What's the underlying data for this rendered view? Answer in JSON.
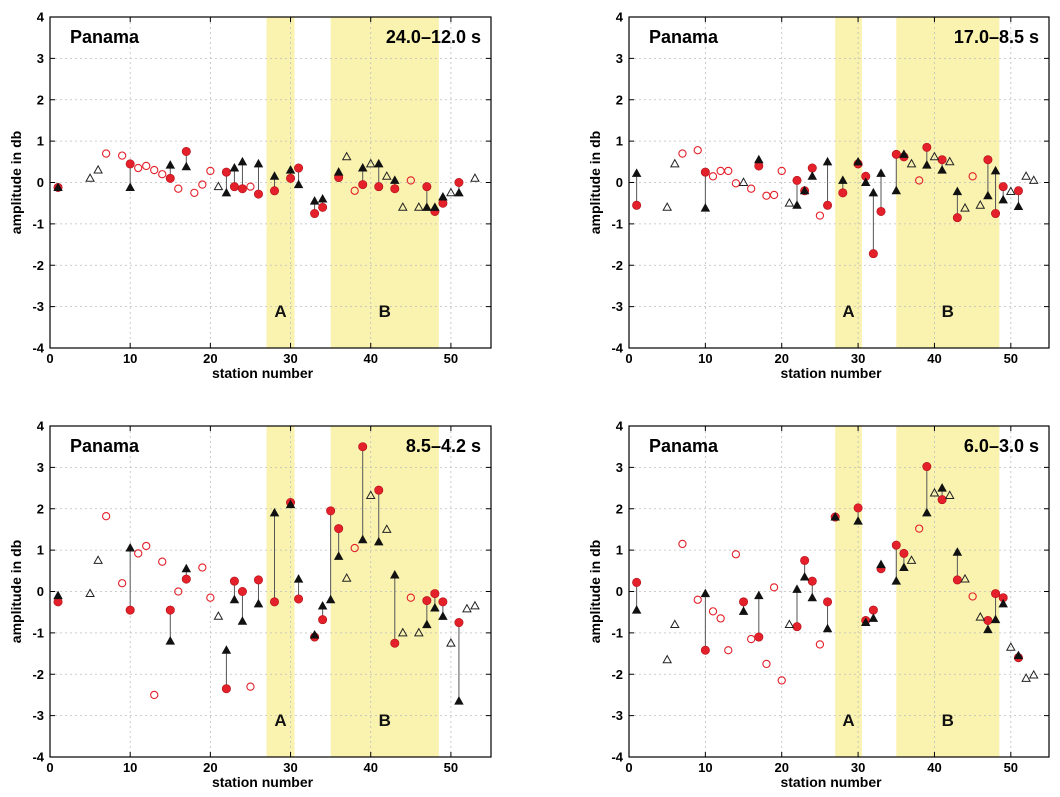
{
  "chart_data": [
    {
      "type": "scatter",
      "title": "Panama",
      "period": "24.0–12.0 s",
      "xlabel": "station number",
      "ylabel": "amplitude in db",
      "xlim": [
        0,
        55
      ],
      "ylim": [
        -4,
        4
      ],
      "xticks": [
        "0",
        "10",
        "20",
        "30",
        "40",
        "50"
      ],
      "yticks": [
        "-4",
        "-3",
        "-2",
        "-1",
        "0",
        "1",
        "2",
        "3",
        "4"
      ],
      "grid": true,
      "regions": [
        {
          "label": "A",
          "x": [
            27,
            30.5
          ]
        },
        {
          "label": "B",
          "x": [
            35,
            48.5
          ]
        }
      ],
      "series": [
        {
          "marker": "filled-red-circle",
          "x": [
            1,
            10,
            15,
            17,
            22,
            23,
            24,
            26,
            28,
            30,
            31,
            33,
            34,
            36,
            39,
            41,
            43,
            47,
            48,
            49,
            51
          ],
          "values": [
            -0.12,
            0.45,
            0.1,
            0.75,
            0.25,
            -0.1,
            -0.15,
            -0.28,
            -0.2,
            0.1,
            0.35,
            -0.75,
            -0.6,
            0.12,
            -0.05,
            -0.1,
            -0.15,
            -0.1,
            -0.7,
            -0.5,
            0.0
          ]
        },
        {
          "marker": "filled-black-triangle",
          "x": [
            1,
            10,
            15,
            17,
            22,
            23,
            24,
            26,
            28,
            30,
            31,
            33,
            34,
            36,
            39,
            41,
            43,
            47,
            48,
            49,
            51
          ],
          "values": [
            -0.12,
            -0.12,
            0.42,
            0.38,
            -0.25,
            0.35,
            0.5,
            0.45,
            0.15,
            0.3,
            -0.05,
            -0.45,
            -0.4,
            0.25,
            0.35,
            0.45,
            0.05,
            -0.6,
            -0.6,
            -0.35,
            -0.25
          ]
        },
        {
          "marker": "open-red-circle",
          "x": [
            7,
            9,
            11,
            12,
            13,
            14,
            16,
            18,
            19,
            20,
            25,
            38,
            45
          ],
          "values": [
            0.7,
            0.65,
            0.35,
            0.4,
            0.3,
            0.2,
            -0.15,
            -0.25,
            -0.05,
            0.28,
            -0.1,
            -0.2,
            0.05
          ]
        },
        {
          "marker": "open-black-triangle",
          "x": [
            5,
            6,
            21,
            37,
            40,
            42,
            44,
            46,
            50,
            53
          ],
          "values": [
            0.1,
            0.3,
            -0.1,
            0.62,
            0.45,
            0.15,
            -0.6,
            -0.6,
            -0.25,
            0.1
          ]
        }
      ]
    },
    {
      "type": "scatter",
      "title": "Panama",
      "period": "17.0–8.5 s",
      "xlabel": "station number",
      "ylabel": "amplitude in db",
      "xlim": [
        0,
        55
      ],
      "ylim": [
        -4,
        4
      ],
      "xticks": [
        "0",
        "10",
        "20",
        "30",
        "40",
        "50"
      ],
      "yticks": [
        "-4",
        "-3",
        "-2",
        "-1",
        "0",
        "1",
        "2",
        "3",
        "4"
      ],
      "grid": true,
      "regions": [
        {
          "label": "A",
          "x": [
            27,
            30.5
          ]
        },
        {
          "label": "B",
          "x": [
            35,
            48.5
          ]
        }
      ],
      "series": [
        {
          "marker": "filled-red-circle",
          "x": [
            1,
            10,
            17,
            22,
            23,
            24,
            26,
            28,
            30,
            31,
            32,
            33,
            35,
            36,
            39,
            41,
            43,
            47,
            48,
            49,
            51
          ],
          "values": [
            -0.55,
            0.25,
            0.4,
            0.05,
            -0.2,
            0.35,
            -0.55,
            -0.25,
            0.45,
            0.15,
            -1.72,
            -0.7,
            0.68,
            0.62,
            0.85,
            0.55,
            -0.85,
            0.55,
            -0.75,
            -0.1,
            -0.2
          ]
        },
        {
          "marker": "filled-black-triangle",
          "x": [
            1,
            10,
            17,
            22,
            23,
            24,
            26,
            28,
            30,
            31,
            32,
            33,
            35,
            36,
            39,
            41,
            43,
            47,
            48,
            49,
            51
          ],
          "values": [
            0.22,
            -0.62,
            0.55,
            -0.55,
            -0.2,
            0.15,
            0.5,
            0.05,
            0.5,
            0.0,
            -0.25,
            0.22,
            -0.2,
            0.68,
            0.42,
            0.3,
            -0.22,
            -0.32,
            0.28,
            -0.42,
            -0.58
          ]
        },
        {
          "marker": "open-red-circle",
          "x": [
            7,
            9,
            11,
            12,
            13,
            14,
            16,
            18,
            19,
            20,
            25,
            38,
            45
          ],
          "values": [
            0.7,
            0.78,
            0.15,
            0.28,
            0.28,
            -0.02,
            -0.15,
            -0.32,
            -0.3,
            0.28,
            -0.8,
            0.05,
            0.15
          ]
        },
        {
          "marker": "open-black-triangle",
          "x": [
            5,
            6,
            15,
            21,
            37,
            40,
            42,
            44,
            46,
            50,
            52,
            53
          ],
          "values": [
            -0.6,
            0.45,
            0.0,
            -0.5,
            0.45,
            0.62,
            0.5,
            -0.62,
            -0.55,
            -0.22,
            0.15,
            0.05
          ]
        }
      ]
    },
    {
      "type": "scatter",
      "title": "Panama",
      "period": "8.5–4.2 s",
      "xlabel": "station number",
      "ylabel": "amplitude in db",
      "xlim": [
        0,
        55
      ],
      "ylim": [
        -4,
        4
      ],
      "xticks": [
        "0",
        "10",
        "20",
        "30",
        "40",
        "50"
      ],
      "yticks": [
        "-4",
        "-3",
        "-2",
        "-1",
        "0",
        "1",
        "2",
        "3",
        "4"
      ],
      "grid": true,
      "regions": [
        {
          "label": "A",
          "x": [
            27,
            30.5
          ]
        },
        {
          "label": "B",
          "x": [
            35,
            48.5
          ]
        }
      ],
      "series": [
        {
          "marker": "filled-red-circle",
          "x": [
            1,
            10,
            15,
            17,
            22,
            23,
            24,
            26,
            28,
            30,
            31,
            33,
            34,
            35,
            36,
            39,
            41,
            43,
            47,
            48,
            49,
            51
          ],
          "values": [
            -0.25,
            -0.45,
            -0.45,
            0.3,
            -2.35,
            0.25,
            0.0,
            0.28,
            -0.25,
            2.15,
            -0.18,
            -1.1,
            -0.68,
            1.95,
            1.52,
            3.5,
            2.45,
            -1.25,
            -0.22,
            -0.05,
            -0.25,
            -0.75
          ]
        },
        {
          "marker": "filled-black-triangle",
          "x": [
            1,
            10,
            15,
            17,
            22,
            23,
            24,
            26,
            28,
            30,
            31,
            33,
            34,
            35,
            36,
            39,
            41,
            43,
            47,
            48,
            49,
            51
          ],
          "values": [
            -0.1,
            1.05,
            -1.2,
            0.55,
            -1.42,
            -0.2,
            -0.72,
            -0.3,
            1.9,
            2.1,
            0.3,
            -1.05,
            -0.35,
            -0.2,
            0.85,
            1.25,
            1.2,
            0.4,
            -0.8,
            -0.4,
            -0.6,
            -2.65
          ]
        },
        {
          "marker": "open-red-circle",
          "x": [
            7,
            9,
            11,
            12,
            13,
            14,
            16,
            19,
            20,
            25,
            38,
            45
          ],
          "values": [
            1.82,
            0.2,
            0.92,
            1.1,
            -2.5,
            0.72,
            0.0,
            0.58,
            -0.15,
            -2.3,
            1.05,
            -0.15
          ]
        },
        {
          "marker": "open-black-triangle",
          "x": [
            5,
            6,
            21,
            37,
            40,
            42,
            44,
            46,
            50,
            52,
            53
          ],
          "values": [
            -0.05,
            0.75,
            -0.6,
            0.32,
            2.32,
            1.5,
            -1.0,
            -1.0,
            -1.25,
            -0.42,
            -0.35
          ]
        }
      ]
    },
    {
      "type": "scatter",
      "title": "Panama",
      "period": "6.0–3.0 s",
      "xlabel": "station number",
      "ylabel": "amplitude in db",
      "xlim": [
        0,
        55
      ],
      "ylim": [
        -4,
        4
      ],
      "xticks": [
        "0",
        "10",
        "20",
        "30",
        "40",
        "50"
      ],
      "yticks": [
        "-4",
        "-3",
        "-2",
        "-1",
        "0",
        "1",
        "2",
        "3",
        "4"
      ],
      "grid": true,
      "regions": [
        {
          "label": "A",
          "x": [
            27,
            30.5
          ]
        },
        {
          "label": "B",
          "x": [
            35,
            48.5
          ]
        }
      ],
      "series": [
        {
          "marker": "filled-red-circle",
          "x": [
            1,
            10,
            15,
            17,
            22,
            23,
            24,
            26,
            27,
            30,
            31,
            32,
            33,
            35,
            36,
            39,
            41,
            43,
            47,
            48,
            49,
            51
          ],
          "values": [
            0.22,
            -1.42,
            -0.25,
            -1.1,
            -0.85,
            0.75,
            0.25,
            -0.25,
            1.8,
            2.02,
            -0.7,
            -0.45,
            0.55,
            1.12,
            0.92,
            3.02,
            2.22,
            0.28,
            -0.7,
            -0.05,
            -0.15,
            -1.6
          ]
        },
        {
          "marker": "filled-black-triangle",
          "x": [
            1,
            10,
            15,
            17,
            22,
            23,
            24,
            26,
            27,
            30,
            31,
            32,
            33,
            35,
            36,
            39,
            41,
            43,
            47,
            48,
            49,
            51
          ],
          "values": [
            -0.45,
            -0.05,
            -0.48,
            -0.1,
            0.05,
            0.35,
            -0.15,
            -0.9,
            1.8,
            1.7,
            -0.75,
            -0.65,
            0.65,
            0.25,
            0.58,
            1.9,
            2.5,
            0.95,
            -0.92,
            -0.68,
            -0.3,
            -1.55
          ]
        },
        {
          "marker": "open-red-circle",
          "x": [
            7,
            9,
            11,
            12,
            13,
            14,
            16,
            18,
            19,
            20,
            25,
            38,
            45
          ],
          "values": [
            1.15,
            -0.2,
            -0.48,
            -0.65,
            -1.42,
            0.9,
            -1.15,
            -1.75,
            0.1,
            -2.15,
            -1.28,
            1.52,
            -0.12
          ]
        },
        {
          "marker": "open-black-triangle",
          "x": [
            5,
            6,
            21,
            37,
            40,
            42,
            44,
            46,
            50,
            52,
            53
          ],
          "values": [
            -1.65,
            -0.8,
            -0.8,
            0.75,
            2.38,
            2.32,
            0.3,
            -0.62,
            -1.35,
            -2.1,
            -2.02
          ]
        }
      ]
    }
  ]
}
